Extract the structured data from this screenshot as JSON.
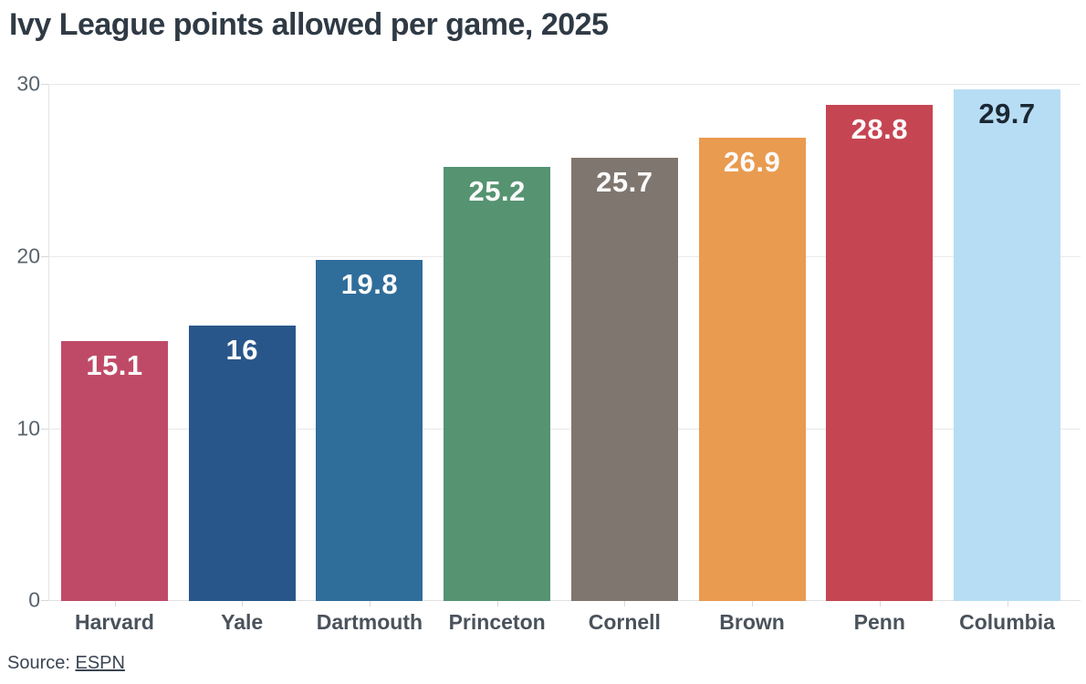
{
  "title": "Ivy League points allowed per game, 2025",
  "source": {
    "prefix": "Source: ",
    "link_label": "ESPN"
  },
  "chart_data": {
    "type": "bar",
    "title": "Ivy League points allowed per game, 2025",
    "categories": [
      "Harvard",
      "Yale",
      "Dartmouth",
      "Princeton",
      "Cornell",
      "Brown",
      "Penn",
      "Columbia"
    ],
    "values": [
      15.1,
      16,
      19.8,
      25.2,
      25.7,
      26.9,
      28.8,
      29.7
    ],
    "value_labels": [
      "15.1",
      "16",
      "19.8",
      "25.2",
      "25.7",
      "26.9",
      "28.8",
      "29.7"
    ],
    "bar_colors": [
      "#bf4a67",
      "#29568a",
      "#2f6d9b",
      "#559371",
      "#7f766f",
      "#e99b50",
      "#c64553",
      "#b7ddf4"
    ],
    "value_label_colors": [
      "#fbfbfb",
      "#fbfbfb",
      "#fbfbfb",
      "#fbfbfb",
      "#fbfbfb",
      "#fbfbfb",
      "#fbfbfb",
      "#1b2733"
    ],
    "xlabel": "",
    "ylabel": "",
    "ylim": [
      0,
      30
    ],
    "yticks": [
      0,
      10,
      20,
      30
    ],
    "grid": true,
    "legend": false,
    "background": "#ffffff",
    "title_color": "#2f3a45",
    "axis_label_color": "#5a636c",
    "category_label_color": "#4a525b",
    "source_text": "Source: ESPN"
  }
}
